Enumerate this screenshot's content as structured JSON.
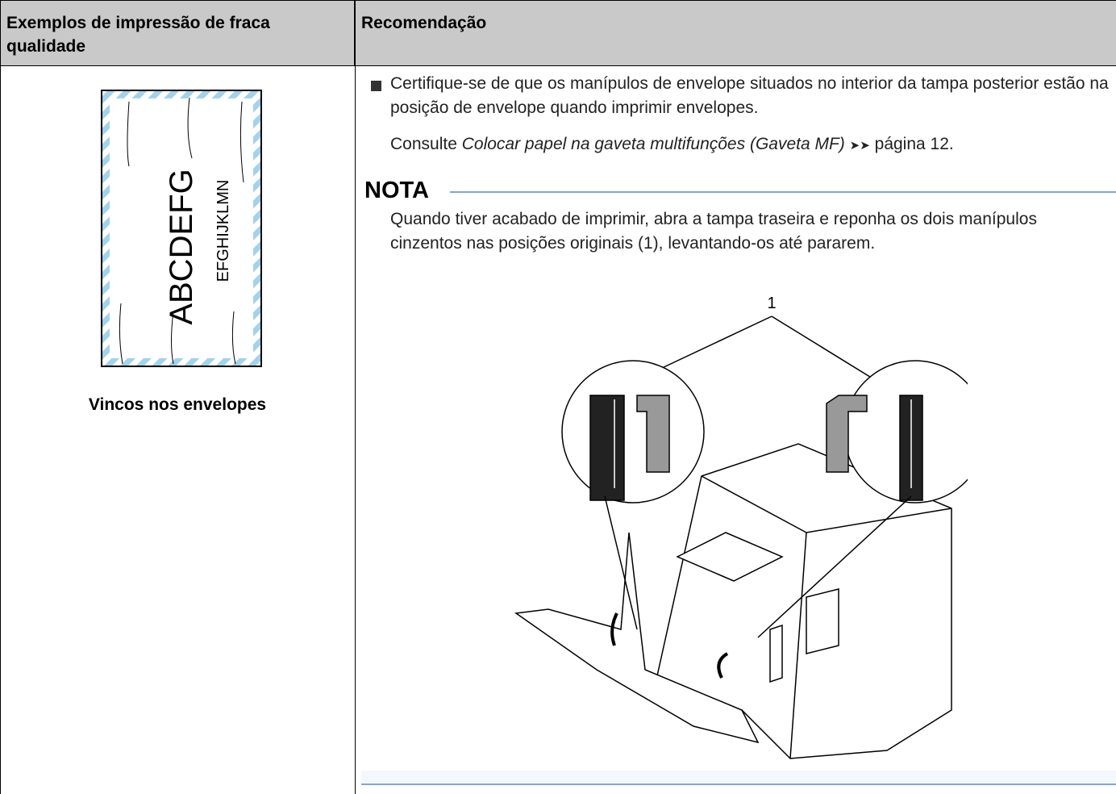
{
  "table": {
    "headers": [
      "Exemplos de impressão de fraca qualidade",
      "Recomendação"
    ],
    "example": {
      "envelope_text": "ABCDEFG",
      "envelope_subtext": "EFGHIJKLMN",
      "caption": "Vincos nos envelopes"
    },
    "recommendation": {
      "bullet": "Certifique-se de que os manípulos de envelope situados no interior da tampa posterior estão na posição de envelope quando imprimir envelopes.",
      "reference": {
        "prefix": "Consulte",
        "link": "Colocar papel na gaveta multifunções (Gaveta MF)",
        "arrows": "➤➤",
        "page": "página 12."
      },
      "note": {
        "title": "NOTA",
        "text": "Quando tiver acabado de imprimir, abra a tampa traseira e reponha os dois manípulos cinzentos nas posições originais (1), levantando-os até pararem.",
        "callout": "1"
      }
    }
  }
}
